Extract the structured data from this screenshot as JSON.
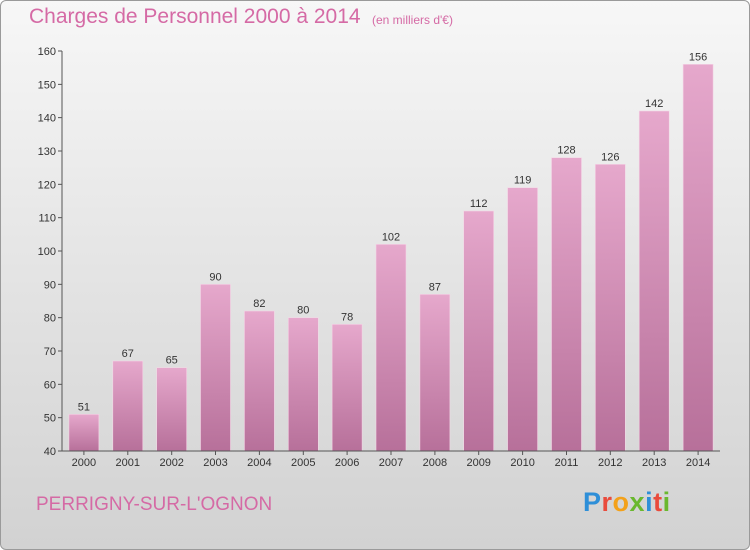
{
  "header": {
    "title": "Charges de Personnel 2000 à 2014",
    "subtitle": "(en milliers d'€)"
  },
  "footer": {
    "commune": "PERRIGNY-SUR-L'OGNON",
    "logo": "Proxiti"
  },
  "colors": {
    "accent": "#d56aa5",
    "bar_top": "#e6a8cc",
    "bar_bottom": "#b7709a",
    "logo_letters": [
      "#2e8fd8",
      "#e94b3c",
      "#f3a11a",
      "#6ab82e",
      "#2e8fd8",
      "#e94b3c",
      "#6ab82e"
    ]
  },
  "chart_data": {
    "type": "bar",
    "title": "Charges de Personnel 2000 à 2014",
    "subtitle": "(en milliers d'€)",
    "categories": [
      "2000",
      "2001",
      "2002",
      "2003",
      "2004",
      "2005",
      "2006",
      "2007",
      "2008",
      "2009",
      "2010",
      "2011",
      "2012",
      "2013",
      "2014"
    ],
    "values": [
      51,
      67,
      65,
      90,
      82,
      80,
      78,
      102,
      87,
      112,
      119,
      128,
      126,
      142,
      156
    ],
    "ylim": [
      40,
      160
    ],
    "yticks": [
      40,
      50,
      60,
      70,
      80,
      90,
      100,
      110,
      120,
      130,
      140,
      150,
      160
    ],
    "grid": false,
    "legend": "none"
  }
}
